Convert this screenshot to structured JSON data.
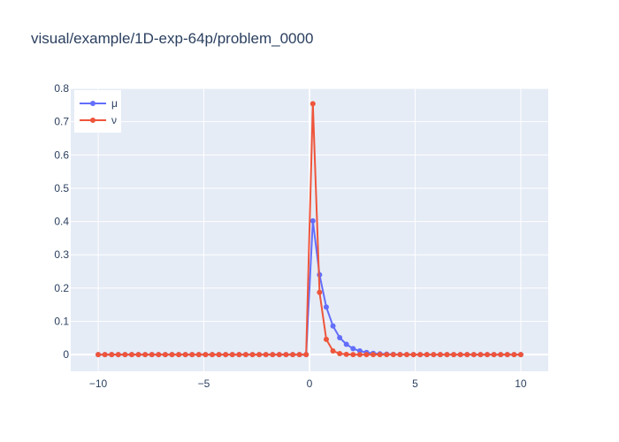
{
  "chart_data": {
    "type": "line",
    "title": "visual/example/1D-exp-64p/problem_0000",
    "xlabel": "",
    "ylabel": "",
    "xlim": [
      -11.3,
      11.3
    ],
    "ylim": [
      -0.05,
      0.8
    ],
    "xticks": [
      -10,
      -5,
      0,
      5,
      10
    ],
    "xtick_labels": [
      "−10",
      "−5",
      "0",
      "5",
      "10"
    ],
    "yticks": [
      0,
      0.1,
      0.2,
      0.3,
      0.4,
      0.5,
      0.6,
      0.7,
      0.8
    ],
    "ytick_labels": [
      "0",
      "0.1",
      "0.2",
      "0.3",
      "0.4",
      "0.5",
      "0.6",
      "0.7",
      "0.8"
    ],
    "grid": true,
    "legend_position": "top-left",
    "background": "#e5ecf6",
    "x": [
      -10,
      -9.683,
      -9.365,
      -9.048,
      -8.73,
      -8.413,
      -8.095,
      -7.778,
      -7.46,
      -7.143,
      -6.825,
      -6.508,
      -6.19,
      -5.873,
      -5.556,
      -5.238,
      -4.921,
      -4.603,
      -4.286,
      -3.968,
      -3.651,
      -3.333,
      -3.016,
      -2.698,
      -2.381,
      -2.063,
      -1.746,
      -1.429,
      -1.111,
      -0.794,
      -0.476,
      -0.159,
      0.159,
      0.476,
      0.794,
      1.111,
      1.429,
      1.746,
      2.063,
      2.381,
      2.698,
      3.016,
      3.333,
      3.651,
      3.968,
      4.286,
      4.603,
      4.921,
      5.238,
      5.556,
      5.873,
      6.19,
      6.508,
      6.825,
      7.143,
      7.46,
      7.778,
      8.095,
      8.413,
      8.73,
      9.048,
      9.365,
      9.683,
      10
    ],
    "series": [
      {
        "name": "μ",
        "color": "#636efa",
        "values": [
          0,
          0,
          0,
          0,
          0,
          0,
          0,
          0,
          0,
          0,
          0,
          0,
          0,
          0,
          0,
          0,
          0,
          0,
          0,
          0,
          0,
          0,
          0,
          0,
          0,
          0,
          0,
          0,
          0,
          0,
          0,
          0,
          0.402,
          0.24,
          0.143,
          0.086,
          0.051,
          0.031,
          0.018,
          0.011,
          0.0065,
          0.0039,
          0.0023,
          0.0014,
          0.0008,
          0.0005,
          0.0003,
          0.0002,
          0.0001,
          0.0001,
          0,
          0,
          0,
          0,
          0,
          0,
          0,
          0,
          0,
          0,
          0,
          0,
          0,
          0
        ]
      },
      {
        "name": "ν",
        "color": "#ef553b",
        "values": [
          0,
          0,
          0,
          0,
          0,
          0,
          0,
          0,
          0,
          0,
          0,
          0,
          0,
          0,
          0,
          0,
          0,
          0,
          0,
          0,
          0,
          0,
          0,
          0,
          0,
          0,
          0,
          0,
          0,
          0,
          0,
          0,
          0.754,
          0.187,
          0.046,
          0.011,
          0.003,
          0.0007,
          0.0002,
          0,
          0,
          0,
          0,
          0,
          0,
          0,
          0,
          0,
          0,
          0,
          0,
          0,
          0,
          0,
          0,
          0,
          0,
          0,
          0,
          0,
          0,
          0,
          0,
          0
        ]
      }
    ]
  }
}
